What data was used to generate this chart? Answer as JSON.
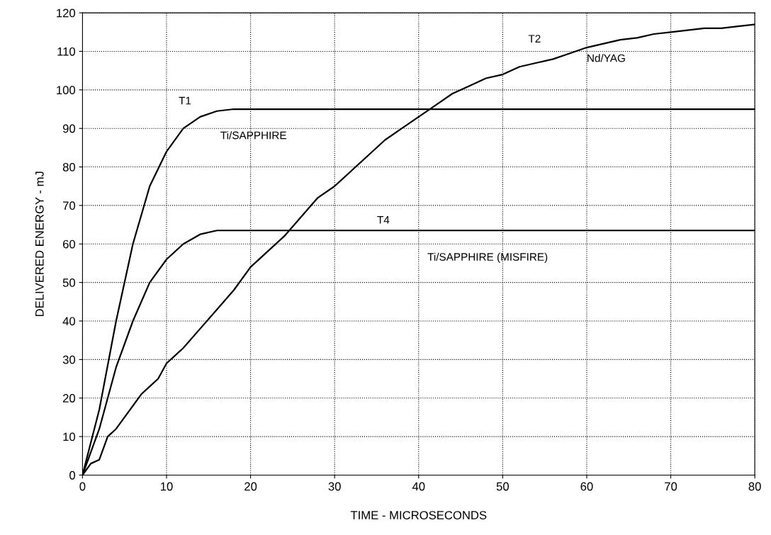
{
  "chart_data": {
    "type": "line",
    "xlabel": "TIME - MICROSECONDS",
    "ylabel": "DELIVERED ENERGY - mJ",
    "xlim": [
      0,
      80
    ],
    "ylim": [
      0,
      120
    ],
    "xticks": [
      0,
      10,
      20,
      30,
      40,
      50,
      60,
      70,
      80
    ],
    "yticks": [
      0,
      10,
      20,
      30,
      40,
      50,
      60,
      70,
      80,
      90,
      100,
      110,
      120
    ],
    "grid": true,
    "line_style": "solid",
    "marker": "none",
    "series": [
      {
        "color": "#000000",
        "x": [
          0,
          2,
          4,
          6,
          8,
          10,
          12,
          14,
          16,
          18,
          80
        ],
        "values": [
          0,
          17,
          40,
          60,
          75,
          84,
          90,
          93,
          94.5,
          95,
          95
        ]
      },
      {
        "color": "#000000",
        "x": [
          0,
          2,
          4,
          6,
          8,
          10,
          12,
          14,
          16,
          80
        ],
        "values": [
          0,
          12,
          28,
          40,
          50,
          56,
          60,
          62.5,
          63.5,
          63.5
        ]
      },
      {
        "color": "#000000",
        "x": [
          0,
          1,
          2,
          3,
          4,
          5,
          6,
          7,
          8,
          9,
          10,
          12,
          14,
          16,
          18,
          20,
          22,
          24,
          26,
          28,
          30,
          32,
          34,
          36,
          38,
          40,
          42,
          44,
          46,
          48,
          50,
          52,
          54,
          56,
          58,
          60,
          62,
          64,
          66,
          68,
          70,
          72,
          74,
          76,
          78,
          80
        ],
        "values": [
          0,
          3,
          4,
          10,
          12,
          15,
          18,
          21,
          23,
          25,
          29,
          33,
          38,
          43,
          48,
          54,
          58,
          62,
          67,
          72,
          75,
          79,
          83,
          87,
          90,
          93,
          96,
          99,
          101,
          103,
          104,
          106,
          107,
          108,
          109.5,
          111,
          112,
          113,
          113.5,
          114.5,
          115,
          115.5,
          116,
          116,
          116.5,
          117
        ]
      }
    ],
    "annotations": [
      "T1",
      "Ti/SAPPHIRE",
      "T4",
      "Ti/SAPPHIRE (MISFIRE)",
      "T2",
      "Nd/YAG"
    ]
  }
}
